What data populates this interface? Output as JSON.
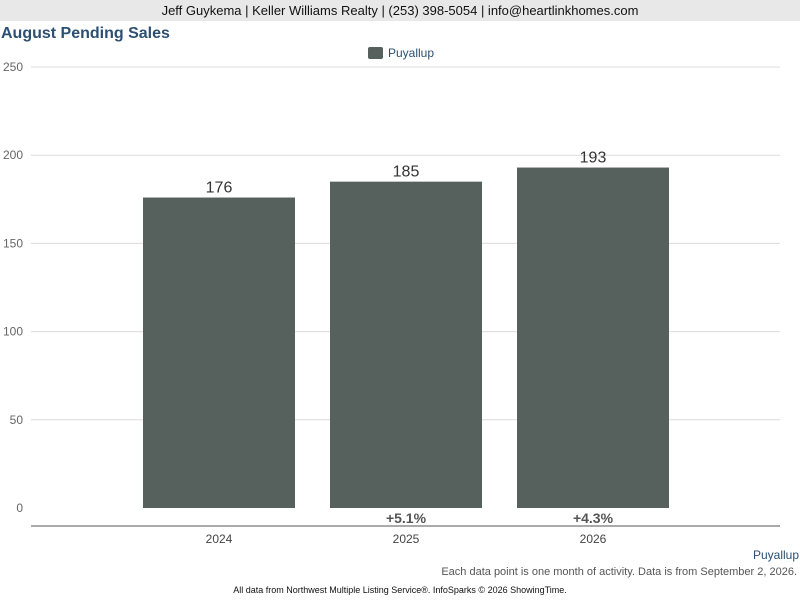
{
  "header": {
    "contact": "Jeff Guykema | Keller Williams Realty | (253) 398-5054 | info@heartlinkhomes.com"
  },
  "chart_data": {
    "type": "bar",
    "title": "August Pending Sales",
    "categories": [
      "2024",
      "2025",
      "2026"
    ],
    "series": [
      {
        "name": "Puyallup",
        "values": [
          176,
          185,
          193
        ],
        "color": "#56605d"
      }
    ],
    "value_labels": [
      "176",
      "185",
      "193"
    ],
    "change_labels": [
      "",
      "+5.1%",
      "+4.3%"
    ],
    "y_ticks": [
      0,
      50,
      100,
      150,
      200,
      250
    ],
    "y_tick_labels": [
      "0",
      "50",
      "100",
      "150",
      "200",
      "250"
    ],
    "ylim": [
      0,
      250
    ],
    "grid": true,
    "legend_position": "top-center"
  },
  "footer": {
    "series_label": "Puyallup",
    "note": "Each data point is one month of activity. Data is from September 2, 2026.",
    "source": "All data from Northwest Multiple Listing Service®. InfoSparks © 2026 ShowingTime."
  }
}
